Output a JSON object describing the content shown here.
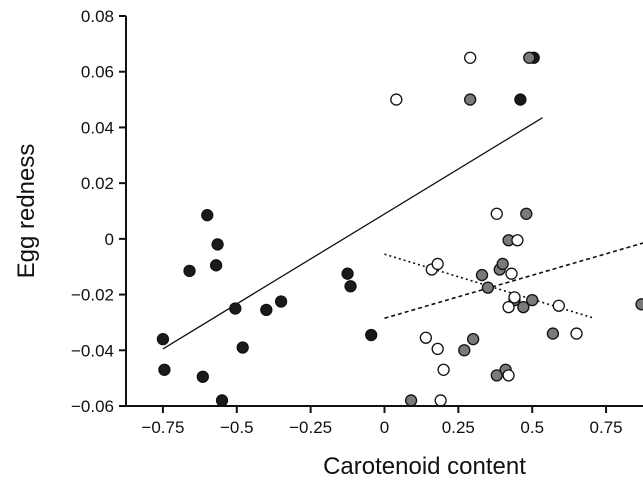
{
  "chart_data": {
    "type": "scatter",
    "title": "",
    "xlabel": "Carotenoid content",
    "ylabel": "Egg redness",
    "xlim": [
      -0.875,
      0.875
    ],
    "ylim": [
      -0.06,
      0.08
    ],
    "x_ticks": [
      -0.75,
      -0.5,
      -0.25,
      0,
      0.25,
      0.5,
      0.75
    ],
    "x_tick_labels": [
      "−0.75",
      "−0.5",
      "−0.25",
      "0",
      "0.25",
      "0.5",
      "0.75"
    ],
    "y_ticks": [
      -0.06,
      -0.04,
      -0.02,
      0,
      0.02,
      0.04,
      0.06,
      0.08
    ],
    "y_tick_labels": [
      "−0.06",
      "−0.04",
      "−0.02",
      "0",
      "0.02",
      "0.04",
      "0.06",
      "0.08"
    ],
    "grid": false,
    "legend": "none",
    "series": [
      {
        "marker": "filled-black",
        "color": "#1a1a1a",
        "points": [
          [
            -0.75,
            -0.036
          ],
          [
            -0.745,
            -0.047
          ],
          [
            -0.66,
            -0.0115
          ],
          [
            -0.6,
            0.0085
          ],
          [
            -0.57,
            -0.0095
          ],
          [
            -0.565,
            -0.002
          ],
          [
            -0.55,
            -0.058
          ],
          [
            -0.615,
            -0.0495
          ],
          [
            -0.505,
            -0.025
          ],
          [
            -0.48,
            -0.039
          ],
          [
            -0.4,
            -0.0255
          ],
          [
            -0.35,
            -0.0225
          ],
          [
            -0.125,
            -0.0125
          ],
          [
            -0.115,
            -0.017
          ],
          [
            -0.045,
            -0.0345
          ],
          [
            0.46,
            0.05
          ],
          [
            0.505,
            0.065
          ]
        ],
        "trend": {
          "style": "solid",
          "from": [
            -0.75,
            -0.0395
          ],
          "to": [
            0.535,
            0.0435
          ]
        }
      },
      {
        "marker": "filled-grey",
        "color": "#7a7a7a",
        "points": [
          [
            0.09,
            -0.058
          ],
          [
            0.29,
            0.05
          ],
          [
            0.27,
            -0.04
          ],
          [
            0.3,
            -0.036
          ],
          [
            0.33,
            -0.013
          ],
          [
            0.35,
            -0.0175
          ],
          [
            0.38,
            -0.049
          ],
          [
            0.39,
            -0.011
          ],
          [
            0.4,
            -0.009
          ],
          [
            0.41,
            -0.047
          ],
          [
            0.42,
            -0.0005
          ],
          [
            0.44,
            -0.022
          ],
          [
            0.47,
            -0.0245
          ],
          [
            0.48,
            0.009
          ],
          [
            0.49,
            0.065
          ],
          [
            0.5,
            -0.022
          ],
          [
            0.57,
            -0.034
          ],
          [
            0.87,
            -0.0235
          ]
        ],
        "trend": {
          "style": "dashed",
          "from": [
            0.0,
            -0.0285
          ],
          "to": [
            0.875,
            -0.0015
          ]
        }
      },
      {
        "marker": "open",
        "color": "#ffffff",
        "points": [
          [
            0.04,
            0.05
          ],
          [
            0.29,
            0.065
          ],
          [
            0.14,
            -0.0355
          ],
          [
            0.16,
            -0.011
          ],
          [
            0.18,
            -0.009
          ],
          [
            0.18,
            -0.0395
          ],
          [
            0.19,
            -0.058
          ],
          [
            0.2,
            -0.047
          ],
          [
            0.38,
            0.009
          ],
          [
            0.42,
            -0.0245
          ],
          [
            0.42,
            -0.049
          ],
          [
            0.43,
            -0.0125
          ],
          [
            0.44,
            -0.021
          ],
          [
            0.45,
            -0.0005
          ],
          [
            0.59,
            -0.024
          ],
          [
            0.65,
            -0.034
          ]
        ],
        "trend": {
          "style": "dotted",
          "from": [
            0.0,
            -0.0055
          ],
          "to": [
            0.71,
            -0.0285
          ]
        }
      }
    ]
  }
}
